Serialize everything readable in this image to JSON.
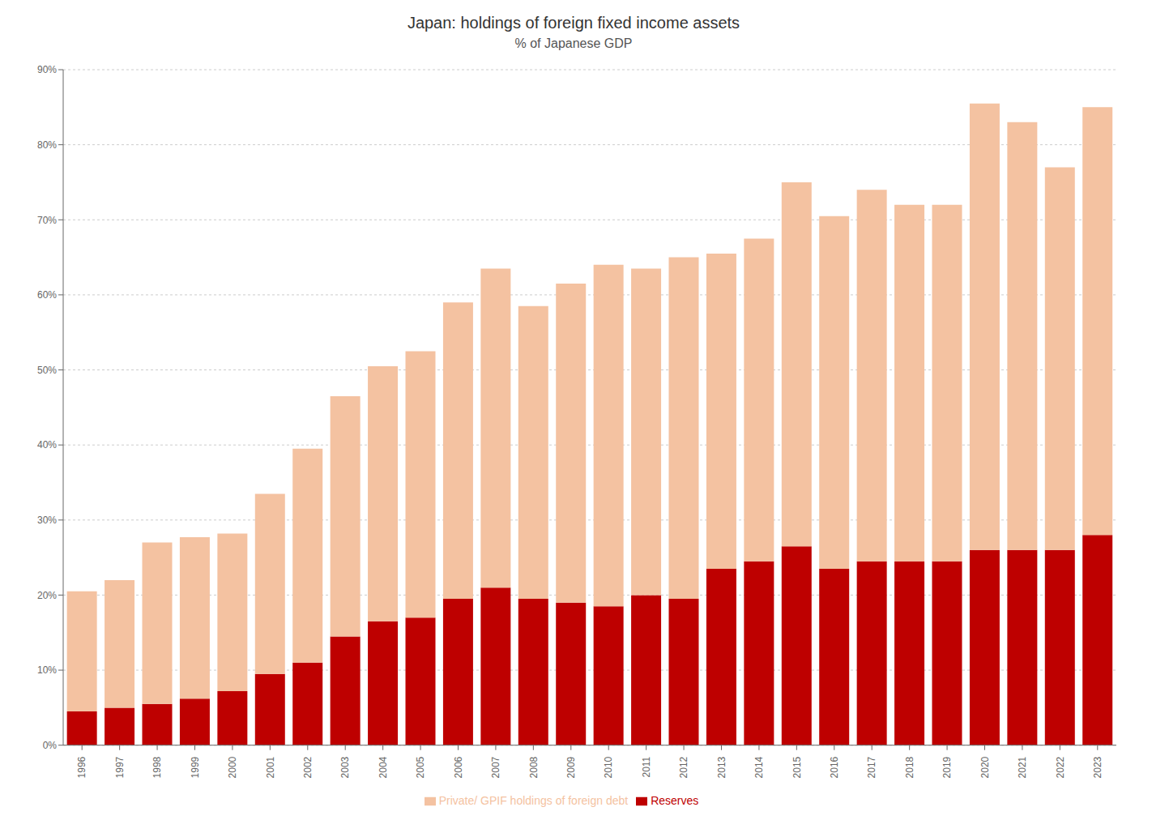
{
  "chart_data": {
    "type": "bar",
    "title": "Japan: holdings of foreign fixed income assets",
    "subtitle": "% of Japanese GDP",
    "categories": [
      "1996",
      "1997",
      "1998",
      "1999",
      "2000",
      "2001",
      "2002",
      "2003",
      "2004",
      "2005",
      "2006",
      "2007",
      "2008",
      "2009",
      "2010",
      "2011",
      "2012",
      "2013",
      "2014",
      "2015",
      "2016",
      "2017",
      "2018",
      "2019",
      "2020",
      "2021",
      "2022",
      "2023"
    ],
    "series": [
      {
        "name": "Reserves",
        "color": "#BE0000",
        "values": [
          4.5,
          5.0,
          5.5,
          6.2,
          7.2,
          9.5,
          11.0,
          14.5,
          16.5,
          17.0,
          19.5,
          21.0,
          19.5,
          19.0,
          18.5,
          20.0,
          19.5,
          23.5,
          24.5,
          26.5,
          23.5,
          24.5,
          24.5,
          24.5,
          26.0,
          26.0,
          26.0,
          28.0
        ]
      },
      {
        "name": "Private/ GPIF holdings of foreign debt",
        "color": "#F4C2A1",
        "values": [
          16.0,
          17.0,
          21.5,
          21.5,
          21.0,
          24.0,
          28.5,
          32.0,
          34.0,
          35.5,
          39.5,
          42.5,
          39.0,
          42.5,
          45.5,
          43.5,
          45.5,
          42.0,
          43.0,
          48.5,
          47.0,
          49.5,
          47.5,
          47.5,
          59.5,
          57.0,
          51.0,
          57.0
        ]
      }
    ],
    "stacked": true,
    "ylim": [
      0,
      90
    ],
    "yticks": [
      {
        "value": 0,
        "label": "0%"
      },
      {
        "value": 10,
        "label": "10%"
      },
      {
        "value": 20,
        "label": "20%"
      },
      {
        "value": 30,
        "label": "30%"
      },
      {
        "value": 40,
        "label": "40%"
      },
      {
        "value": 50,
        "label": "50%"
      },
      {
        "value": 60,
        "label": "60%"
      },
      {
        "value": 70,
        "label": "70%"
      },
      {
        "value": 80,
        "label": "80%"
      },
      {
        "value": 90,
        "label": "90%"
      }
    ],
    "grid": true,
    "legend": "bottom"
  }
}
